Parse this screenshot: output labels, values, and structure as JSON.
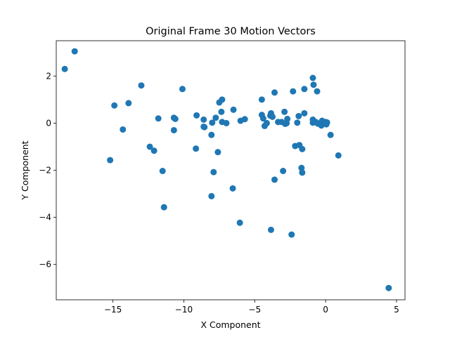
{
  "chart_data": {
    "type": "scatter",
    "title": "Original Frame 30 Motion Vectors",
    "xlabel": "X Component",
    "ylabel": "Y Component",
    "xlim": [
      -19.0,
      5.6
    ],
    "ylim": [
      -7.5,
      3.5
    ],
    "xticks": [
      -15,
      -10,
      -5,
      0,
      5
    ],
    "yticks": [
      -6,
      -4,
      -2,
      0,
      2
    ],
    "grid": false,
    "marker_color": "#1f77b4",
    "points": [
      [
        -18.4,
        2.3
      ],
      [
        -17.7,
        3.05
      ],
      [
        -14.9,
        0.75
      ],
      [
        -13.9,
        0.85
      ],
      [
        -13.0,
        1.6
      ],
      [
        -14.3,
        -0.27
      ],
      [
        -15.2,
        -1.57
      ],
      [
        -12.4,
        -1.0
      ],
      [
        -12.1,
        -1.17
      ],
      [
        -11.8,
        0.2
      ],
      [
        -11.5,
        -2.03
      ],
      [
        -11.4,
        -3.57
      ],
      [
        -10.1,
        1.45
      ],
      [
        -10.7,
        0.23
      ],
      [
        -10.6,
        0.18
      ],
      [
        -10.7,
        -0.3
      ],
      [
        -9.1,
        0.33
      ],
      [
        -8.6,
        0.15
      ],
      [
        -8.6,
        -0.15
      ],
      [
        -8.55,
        -0.17
      ],
      [
        -9.15,
        -1.08
      ],
      [
        -8.0,
        0.02
      ],
      [
        -8.05,
        -0.5
      ],
      [
        -7.75,
        0.23
      ],
      [
        -7.5,
        0.88
      ],
      [
        -7.3,
        1.0
      ],
      [
        -7.35,
        0.48
      ],
      [
        -7.3,
        0.05
      ],
      [
        -7.0,
        0.0
      ],
      [
        -7.6,
        -1.23
      ],
      [
        -7.9,
        -2.08
      ],
      [
        -8.05,
        -3.1
      ],
      [
        -6.5,
        0.57
      ],
      [
        -6.0,
        0.1
      ],
      [
        -5.7,
        0.17
      ],
      [
        -6.55,
        -2.77
      ],
      [
        -6.05,
        -4.23
      ],
      [
        -4.5,
        1.0
      ],
      [
        -3.6,
        1.3
      ],
      [
        -4.5,
        0.35
      ],
      [
        -4.4,
        0.2
      ],
      [
        -4.3,
        -0.12
      ],
      [
        -4.15,
        0.0
      ],
      [
        -3.9,
        0.32
      ],
      [
        -3.85,
        0.42
      ],
      [
        -3.75,
        0.27
      ],
      [
        -3.35,
        0.05
      ],
      [
        -3.1,
        0.05
      ],
      [
        -2.9,
        0.48
      ],
      [
        -2.85,
        -0.03
      ],
      [
        -2.7,
        0.18
      ],
      [
        -2.75,
        0.0
      ],
      [
        -3.6,
        -2.4
      ],
      [
        -3.0,
        -2.03
      ],
      [
        -3.85,
        -4.53
      ],
      [
        -2.4,
        -4.73
      ],
      [
        -2.3,
        1.35
      ],
      [
        -1.5,
        1.45
      ],
      [
        -0.9,
        1.92
      ],
      [
        -0.85,
        1.63
      ],
      [
        -0.6,
        1.35
      ],
      [
        -1.5,
        0.42
      ],
      [
        -1.9,
        0.3
      ],
      [
        -2.0,
        0.02
      ],
      [
        -2.15,
        -0.97
      ],
      [
        -1.85,
        -0.93
      ],
      [
        -1.65,
        -1.1
      ],
      [
        -1.7,
        -1.9
      ],
      [
        -1.65,
        -2.1
      ],
      [
        -0.9,
        0.15
      ],
      [
        -0.9,
        0.02
      ],
      [
        -0.7,
        0.05
      ],
      [
        -0.55,
        -0.02
      ],
      [
        -0.4,
        0.0
      ],
      [
        -0.3,
        -0.1
      ],
      [
        -0.2,
        0.05
      ],
      [
        -0.1,
        0.0
      ],
      [
        0.0,
        0.05
      ],
      [
        0.05,
        -0.05
      ],
      [
        0.1,
        0.03
      ],
      [
        -0.25,
        0.1
      ],
      [
        0.35,
        -0.5
      ],
      [
        0.9,
        -1.37
      ],
      [
        4.45,
        -7.0
      ]
    ]
  }
}
